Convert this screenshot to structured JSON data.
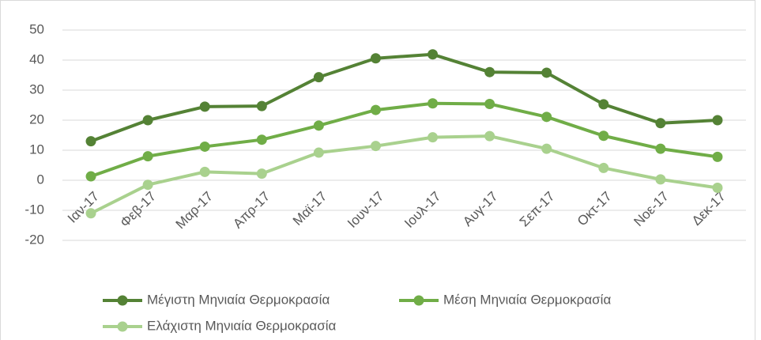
{
  "chart_data": {
    "type": "line",
    "categories": [
      "Ιαν-17",
      "Φεβ-17",
      "Μαρ-17",
      "Απρ-17",
      "Μαϊ-17",
      "Ιουν-17",
      "Ιουλ-17",
      "Αυγ-17",
      "Σεπ-17",
      "Οκτ-17",
      "Νοε-17",
      "Δεκ-17"
    ],
    "series": [
      {
        "name": "Μέγιστη Μηνιαία Θερμοκρασία",
        "color": "#548235",
        "values": [
          13,
          20,
          24.5,
          24.7,
          34.3,
          40.6,
          41.9,
          36,
          35.8,
          25.3,
          19,
          20
        ]
      },
      {
        "name": "Μέση Μηνιαία Θερμοκρασία",
        "color": "#70ad47",
        "values": [
          1.3,
          8,
          11.2,
          13.5,
          18.2,
          23.4,
          25.6,
          25.4,
          21.1,
          14.8,
          10.5,
          7.8
        ]
      },
      {
        "name": "Ελάχιστη Μηνιαία Θερμοκρασία",
        "color": "#a9d18e",
        "values": [
          -11,
          -1.5,
          2.8,
          2.2,
          9.2,
          11.4,
          14.3,
          14.7,
          10.5,
          4.1,
          0.3,
          -2.5
        ]
      }
    ],
    "ylim": [
      -20,
      50
    ],
    "yticks": [
      -20,
      -10,
      0,
      10,
      20,
      30,
      40,
      50
    ],
    "grid": true,
    "legend": "bottom"
  }
}
